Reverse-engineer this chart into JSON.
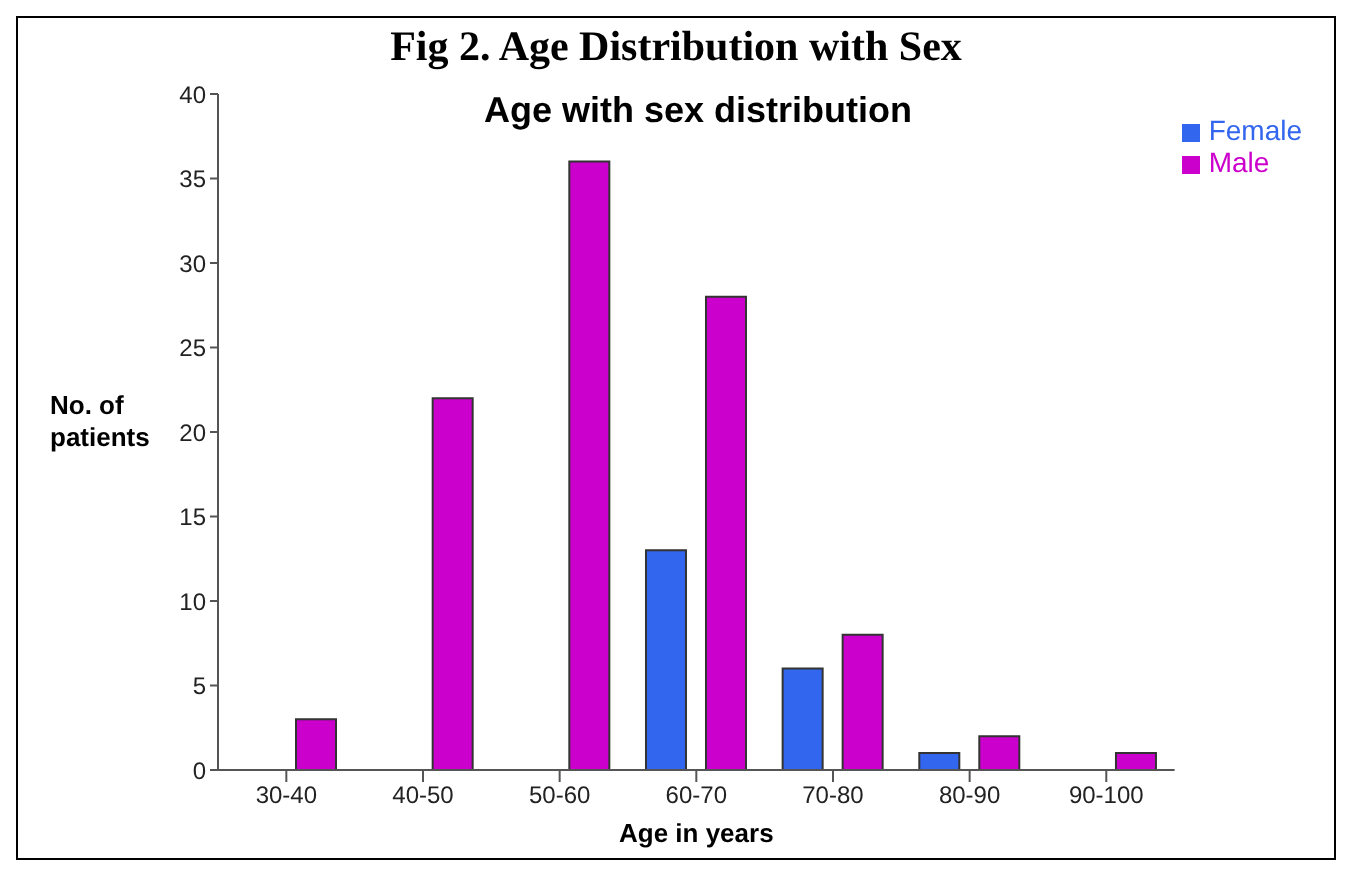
{
  "chart_data": {
    "type": "bar",
    "title": "Fig 2. Age Distribution with Sex",
    "subtitle": "Age with sex distribution",
    "xlabel": "Age in years",
    "ylabel": "No. of patients",
    "categories": [
      "30-40",
      "40-50",
      "50-60",
      "60-70",
      "70-80",
      "80-90",
      "90-100"
    ],
    "series": [
      {
        "name": "Female",
        "color": "#3366ee",
        "values": [
          0,
          0,
          0,
          13,
          6,
          1,
          0
        ]
      },
      {
        "name": "Male",
        "color": "#cc00cc",
        "values": [
          3,
          22,
          36,
          28,
          8,
          2,
          1
        ]
      }
    ],
    "ylim": [
      0,
      40
    ],
    "yticks": [
      0,
      5,
      10,
      15,
      20,
      25,
      30,
      35,
      40
    ],
    "grid": false,
    "legend": "top right"
  }
}
